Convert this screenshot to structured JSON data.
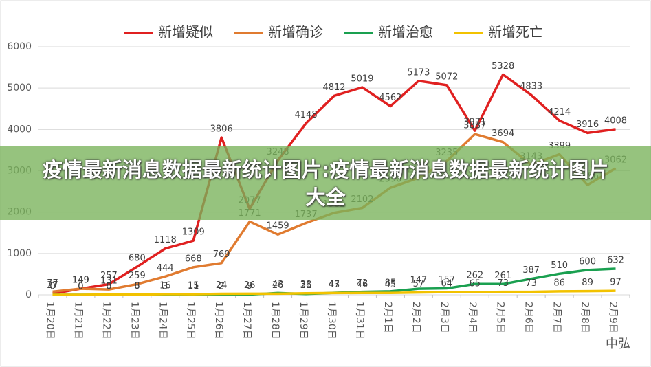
{
  "chart_data": {
    "type": "line",
    "categories": [
      "1月20日",
      "1月21日",
      "1月22日",
      "1月23日",
      "1月24日",
      "1月25日",
      "1月26日",
      "1月27日",
      "1月28日",
      "1月29日",
      "1月30日",
      "1月31日",
      "2月1日",
      "2月2日",
      "2月3日",
      "2月4日",
      "2月5日",
      "2月6日",
      "2月7日",
      "2月8日",
      "2月9日"
    ],
    "series": [
      {
        "name": "新增疑似",
        "color": "#e02020",
        "values": [
          27,
          149,
          257,
          680,
          1118,
          1309,
          3806,
          2077,
          3248,
          4148,
          4812,
          5019,
          4562,
          5173,
          5072,
          3971,
          5328,
          4833,
          4214,
          3916,
          4008
        ]
      },
      {
        "name": "新增确诊",
        "color": "#e07b30",
        "values": [
          77,
          149,
          131,
          259,
          444,
          668,
          769,
          1771,
          1459,
          1737,
          1982,
          2102,
          2590,
          2829,
          3235,
          3887,
          3694,
          3143,
          3399,
          2656,
          3062
        ]
      },
      {
        "name": "新增治愈",
        "color": "#1aa050",
        "values": [
          0,
          0,
          0,
          6,
          3,
          11,
          2,
          9,
          43,
          21,
          47,
          72,
          85,
          147,
          157,
          262,
          261,
          387,
          510,
          600,
          632
        ]
      },
      {
        "name": "新增死亡",
        "color": "#f2c200",
        "values": [
          0,
          0,
          8,
          8,
          16,
          15,
          24,
          26,
          26,
          38,
          43,
          46,
          45,
          57,
          64,
          65,
          73,
          73,
          86,
          89,
          97
        ]
      }
    ],
    "ylim": [
      0,
      6000
    ],
    "yticks": [
      0,
      1000,
      2000,
      3000,
      4000,
      5000,
      6000
    ],
    "grid": true
  },
  "overlay_title": "疫情最新消息数据最新统计图片:疫情最新消息数据最新统计图片大全",
  "watermark": "中弘"
}
